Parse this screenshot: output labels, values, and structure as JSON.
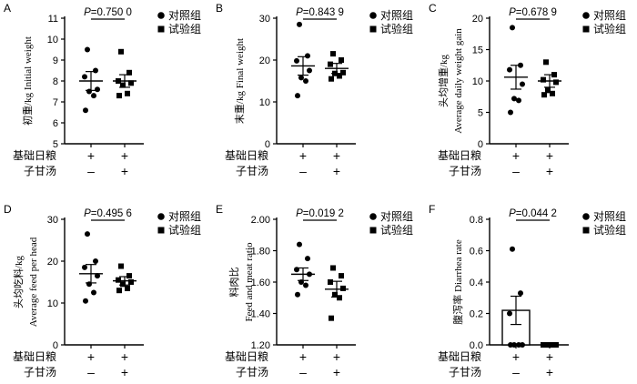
{
  "figure": {
    "row_labels": [
      "基础日粮",
      "子甘汤"
    ],
    "legend": [
      {
        "marker": "circle",
        "label": "对照组"
      },
      {
        "marker": "square",
        "label": "试验组"
      }
    ],
    "group_marks": {
      "basal_diet": [
        "+",
        "+"
      ],
      "zigan_decoction": [
        "–",
        "+"
      ]
    }
  },
  "chart_data": [
    {
      "id": "A",
      "type": "scatter",
      "panel_label": "A",
      "ylabel_cn": "初重/kg",
      "ylabel_en": "Initial weight",
      "ylim": [
        5,
        11
      ],
      "yticks": [
        5,
        6,
        7,
        8,
        9,
        10,
        11
      ],
      "p_value_text": "=0.750 0",
      "series": [
        {
          "name": "对照组",
          "marker": "circle",
          "mean": 8.0,
          "sem": 0.45,
          "values": [
            9.5,
            8.5,
            8.2,
            7.6,
            7.5,
            7.3,
            6.6
          ]
        },
        {
          "name": "试验组",
          "marker": "square",
          "mean": 8.0,
          "sem": 0.3,
          "values": [
            9.4,
            8.4,
            8.0,
            7.9,
            7.8,
            7.4,
            7.3
          ]
        }
      ]
    },
    {
      "id": "B",
      "type": "scatter",
      "panel_label": "B",
      "ylabel_cn": "末重/kg",
      "ylabel_en": "Final weight",
      "ylim": [
        0,
        30
      ],
      "yticks": [
        0,
        10,
        20,
        30
      ],
      "p_value_text": "=0.843 9",
      "series": [
        {
          "name": "对照组",
          "marker": "circle",
          "mean": 18.6,
          "sem": 2.2,
          "values": [
            28.5,
            21.0,
            19.8,
            17.5,
            15.8,
            15.0,
            11.5
          ]
        },
        {
          "name": "试验组",
          "marker": "square",
          "mean": 18.0,
          "sem": 1.2,
          "values": [
            21.5,
            20.0,
            19.0,
            17.0,
            16.8,
            16.2,
            15.5
          ]
        }
      ]
    },
    {
      "id": "C",
      "type": "scatter",
      "panel_label": "C",
      "ylabel_cn": "头均增重/kg",
      "ylabel_en": "Average daily weight gain",
      "ylim": [
        0,
        20
      ],
      "yticks": [
        0,
        5,
        10,
        15,
        20
      ],
      "p_value_text": "=0.678 9",
      "series": [
        {
          "name": "对照组",
          "marker": "circle",
          "mean": 10.6,
          "sem": 1.9,
          "values": [
            18.5,
            12.5,
            11.8,
            9.5,
            7.2,
            6.9,
            5.0
          ]
        },
        {
          "name": "试验组",
          "marker": "square",
          "mean": 10.0,
          "sem": 1.0,
          "values": [
            13.0,
            11.0,
            10.2,
            9.8,
            8.5,
            8.0,
            7.8
          ]
        }
      ]
    },
    {
      "id": "D",
      "type": "scatter",
      "panel_label": "D",
      "ylabel_cn": "头均吃料/kg",
      "ylabel_en": "Average feed per head",
      "ylim": [
        0,
        30
      ],
      "yticks": [
        0,
        10,
        20,
        30
      ],
      "p_value_text": "=0.495 6",
      "series": [
        {
          "name": "对照组",
          "marker": "circle",
          "mean": 17.0,
          "sem": 2.2,
          "values": [
            26.5,
            20.0,
            18.5,
            16.5,
            14.5,
            12.5,
            10.5
          ]
        },
        {
          "name": "试验组",
          "marker": "square",
          "mean": 15.3,
          "sem": 1.0,
          "values": [
            18.8,
            16.5,
            15.5,
            15.0,
            14.5,
            13.5,
            13.0
          ]
        }
      ]
    },
    {
      "id": "E",
      "type": "scatter",
      "panel_label": "E",
      "ylabel_cn": "料肉比",
      "ylabel_en": "Feed and meat ratio",
      "ylim": [
        1.2,
        2.0
      ],
      "yticks": [
        1.2,
        1.4,
        1.6,
        1.8,
        2.0
      ],
      "tick_decimals": 2,
      "p_value_text": "=0.019 2",
      "series": [
        {
          "name": "对照组",
          "marker": "circle",
          "mean": 1.65,
          "sem": 0.04,
          "values": [
            1.84,
            1.75,
            1.68,
            1.65,
            1.6,
            1.58,
            1.52
          ]
        },
        {
          "name": "试验组",
          "marker": "square",
          "mean": 1.555,
          "sem": 0.05,
          "values": [
            1.69,
            1.64,
            1.6,
            1.56,
            1.52,
            1.5,
            1.37
          ]
        }
      ]
    },
    {
      "id": "F",
      "type": "bar",
      "panel_label": "F",
      "ylabel_cn": "腹泻率",
      "ylabel_en": "Diarrhea rate",
      "ylim": [
        0,
        0.8
      ],
      "yticks": [
        0,
        0.2,
        0.4,
        0.6,
        0.8
      ],
      "tick_decimals": 1,
      "p_value_text": "=0.044 2",
      "series": [
        {
          "name": "对照组",
          "marker": "circle",
          "mean": 0.22,
          "sem": 0.09,
          "values": [
            0.61,
            0.33,
            0.2,
            0.0,
            0.0,
            0.0,
            0.0
          ]
        },
        {
          "name": "试验组",
          "marker": "square",
          "mean": 0.0,
          "sem": 0.0,
          "values": [
            0.0,
            0.0,
            0.0,
            0.0,
            0.0,
            0.0,
            0.0
          ]
        }
      ]
    }
  ]
}
